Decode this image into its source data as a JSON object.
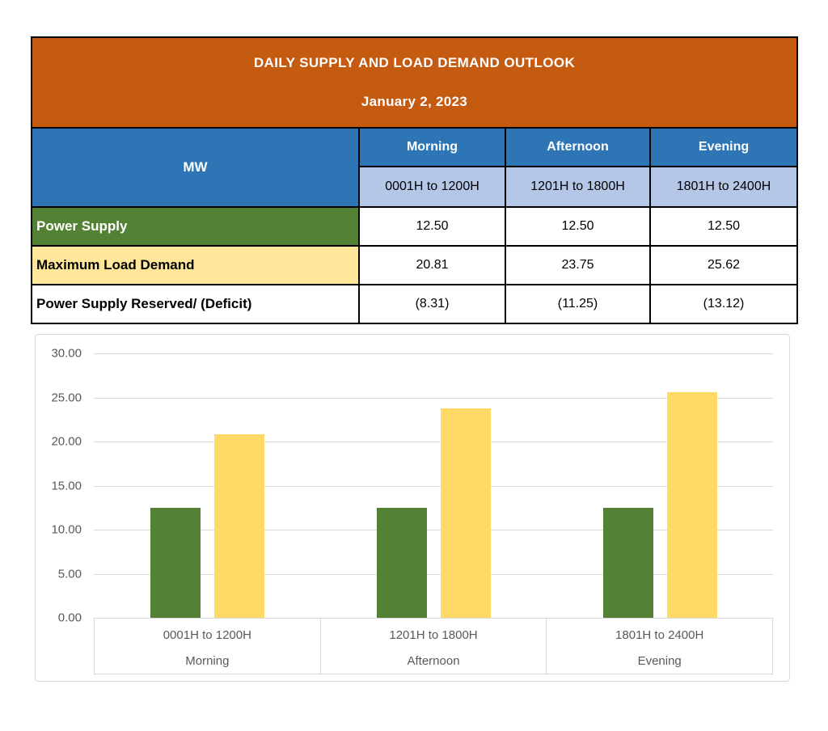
{
  "table": {
    "title": "DAILY SUPPLY AND LOAD DEMAND OUTLOOK",
    "date": "January 2, 2023",
    "unit_label": "MW",
    "periods": [
      {
        "name": "Morning",
        "hours": "0001H to 1200H"
      },
      {
        "name": "Afternoon",
        "hours": "1201H to 1800H"
      },
      {
        "name": "Evening",
        "hours": "1801H to 2400H"
      }
    ],
    "rows": [
      {
        "label": "Power Supply",
        "values": [
          "12.50",
          "12.50",
          "12.50"
        ]
      },
      {
        "label": "Maximum Load Demand",
        "values": [
          "20.81",
          "23.75",
          "25.62"
        ]
      },
      {
        "label": "Power Supply Reserved/ (Deficit)",
        "values": [
          "(8.31)",
          "(11.25)",
          "(13.12)"
        ]
      }
    ]
  },
  "colors": {
    "header_orange": "#C55A11",
    "header_blue": "#2E75B6",
    "subheader_blue": "#B4C7E7",
    "supply_green": "#548235",
    "demand_yellow": "#FFE699",
    "bar_green": "#548235",
    "bar_yellow": "#FFD966",
    "gridline_gray": "#D9D9D9",
    "axis_text_gray": "#595959",
    "table_border": "#000000"
  },
  "chart_data": {
    "type": "bar",
    "title": "",
    "xlabel": "",
    "ylabel": "",
    "categories": [
      {
        "hours": "0001H to 1200H",
        "period": "Morning"
      },
      {
        "hours": "1201H to 1800H",
        "period": "Afternoon"
      },
      {
        "hours": "1801H to 2400H",
        "period": "Evening"
      }
    ],
    "series": [
      {
        "name": "Power Supply",
        "color": "#548235",
        "values": [
          12.5,
          12.5,
          12.5
        ]
      },
      {
        "name": "Maximum Load Demand",
        "color": "#FFD966",
        "values": [
          20.81,
          23.75,
          25.62
        ]
      }
    ],
    "ylim": [
      0,
      30
    ],
    "yticks": [
      {
        "value": 0,
        "label": "0.00"
      },
      {
        "value": 5,
        "label": "5.00"
      },
      {
        "value": 10,
        "label": "10.00"
      },
      {
        "value": 15,
        "label": "15.00"
      },
      {
        "value": 20,
        "label": "20.00"
      },
      {
        "value": 25,
        "label": "25.00"
      },
      {
        "value": 30,
        "label": "30.00"
      }
    ],
    "grid": true,
    "legend": "none"
  }
}
